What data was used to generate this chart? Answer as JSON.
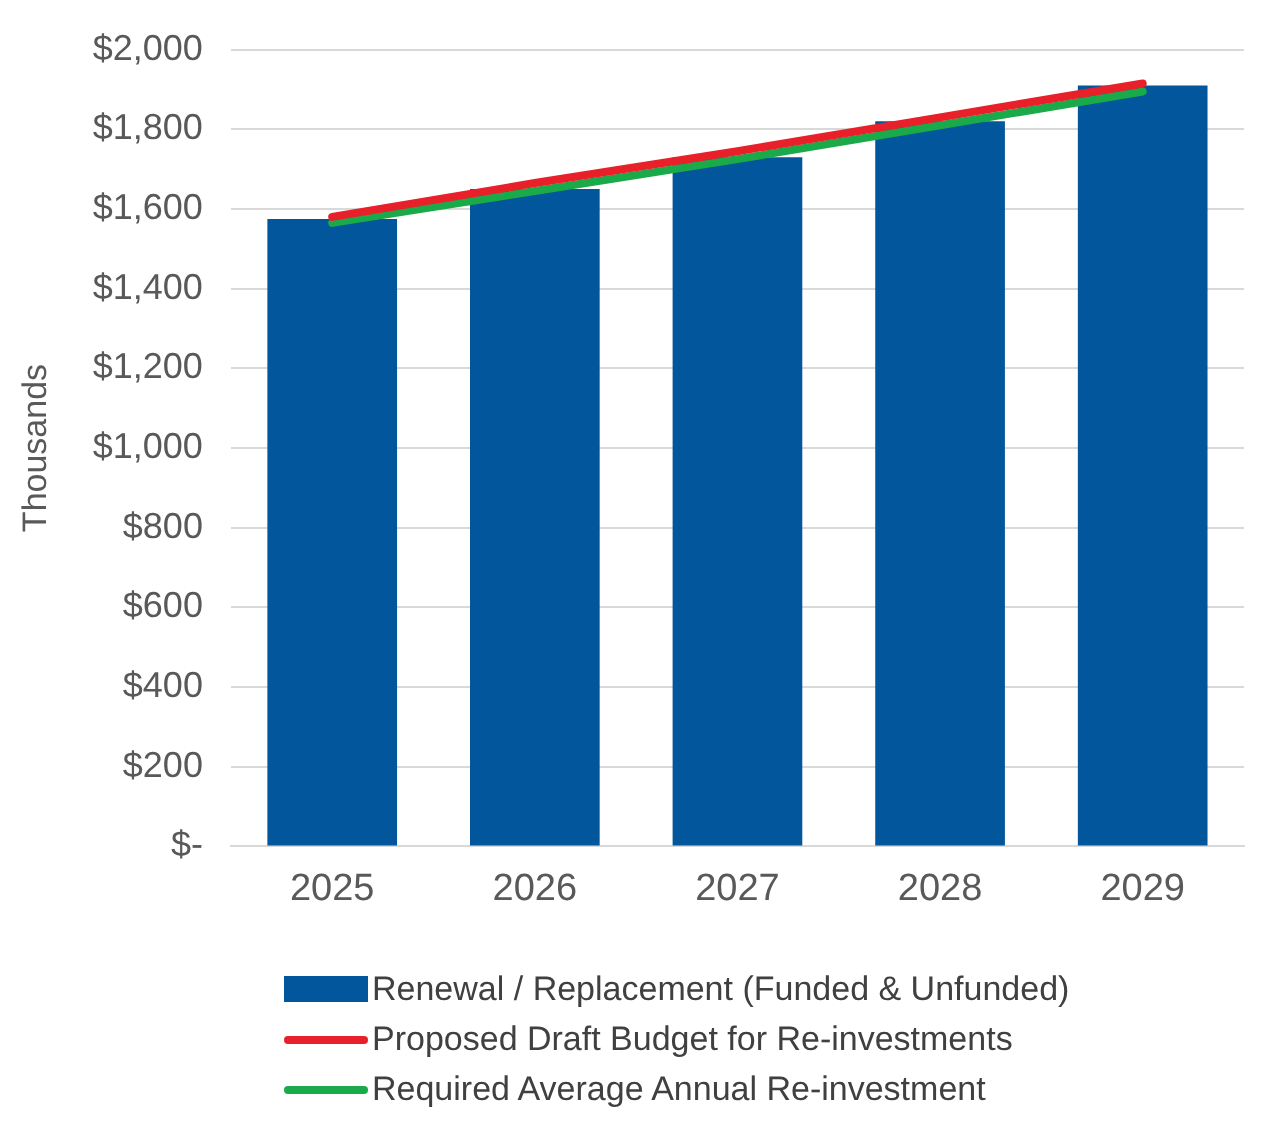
{
  "chart_data": {
    "type": "bar",
    "ylabel": "Thousands",
    "categories": [
      "2025",
      "2026",
      "2027",
      "2028",
      "2029"
    ],
    "series": [
      {
        "name": "Renewal / Replacement (Funded & Unfunded)",
        "color": "#02569b",
        "values": [
          1575,
          1650,
          1730,
          1820,
          1910
        ]
      },
      {
        "name": "Proposed Draft Budget for Re-investments",
        "type": "line",
        "color": "#e8202a",
        "values": [
          1580,
          1665,
          1745,
          1830,
          1915
        ]
      },
      {
        "name": "Required Average Annual Re-investment",
        "type": "line",
        "color": "#1aaa4a",
        "values": [
          1565,
          1645,
          1725,
          1810,
          1895
        ]
      }
    ],
    "ylim": [
      0,
      2000
    ],
    "yticks": [
      {
        "value": 0,
        "label": "$-"
      },
      {
        "value": 200,
        "label": "$200"
      },
      {
        "value": 400,
        "label": "$400"
      },
      {
        "value": 600,
        "label": "$600"
      },
      {
        "value": 800,
        "label": "$800"
      },
      {
        "value": 1000,
        "label": "$1,000"
      },
      {
        "value": 1200,
        "label": "$1,200"
      },
      {
        "value": 1400,
        "label": "$1,400"
      },
      {
        "value": 1600,
        "label": "$1,600"
      },
      {
        "value": 1800,
        "label": "$1,800"
      },
      {
        "value": 2000,
        "label": "$2,000"
      }
    ],
    "grid": "y",
    "legend": "bottom",
    "marker": "none"
  }
}
